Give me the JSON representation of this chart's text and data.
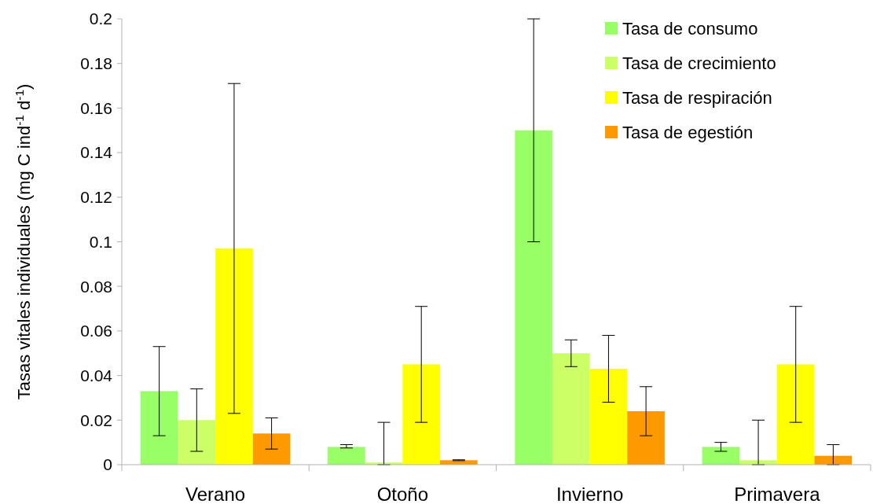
{
  "chart_data": {
    "type": "bar",
    "ylabel": "Tasas vitales individuales (mg C ind$^{-1}$ d$^{-1}$)",
    "categories": [
      "Verano",
      "Otoño",
      "Invierno",
      "Primavera"
    ],
    "series": [
      {
        "name": "Tasa de consumo",
        "color": "#99ff66",
        "values": [
          0.033,
          0.008,
          0.15,
          0.008
        ],
        "errors": [
          [
            0.013,
            0.053
          ],
          [
            0.0075,
            0.009
          ],
          [
            0.1,
            0.2
          ],
          [
            0.006,
            0.01
          ]
        ]
      },
      {
        "name": "Tasa de crecimiento",
        "color": "#ccff66",
        "values": [
          0.02,
          0.001,
          0.05,
          0.002
        ],
        "errors": [
          [
            0.006,
            0.034
          ],
          [
            0,
            0.019
          ],
          [
            0.044,
            0.056
          ],
          [
            0,
            0.02
          ]
        ]
      },
      {
        "name": "Tasa de respiración",
        "color": "#ffff00",
        "values": [
          0.097,
          0.045,
          0.043,
          0.045
        ],
        "errors": [
          [
            0.023,
            0.171
          ],
          [
            0.019,
            0.071
          ],
          [
            0.028,
            0.058
          ],
          [
            0.019,
            0.071
          ]
        ]
      },
      {
        "name": "Tasa de egestión",
        "color": "#ff9900",
        "values": [
          0.014,
          0.002,
          0.024,
          0.004
        ],
        "errors": [
          [
            0.007,
            0.021
          ],
          [
            0.0018,
            0.0022
          ],
          [
            0.013,
            0.035
          ],
          [
            0,
            0.009
          ]
        ]
      }
    ],
    "ylim": [
      0,
      0.2
    ],
    "yticks": [
      0,
      0.02,
      0.04,
      0.06,
      0.08,
      0.1,
      0.12,
      0.14,
      0.16,
      0.18,
      0.2
    ],
    "legend": "top right"
  }
}
